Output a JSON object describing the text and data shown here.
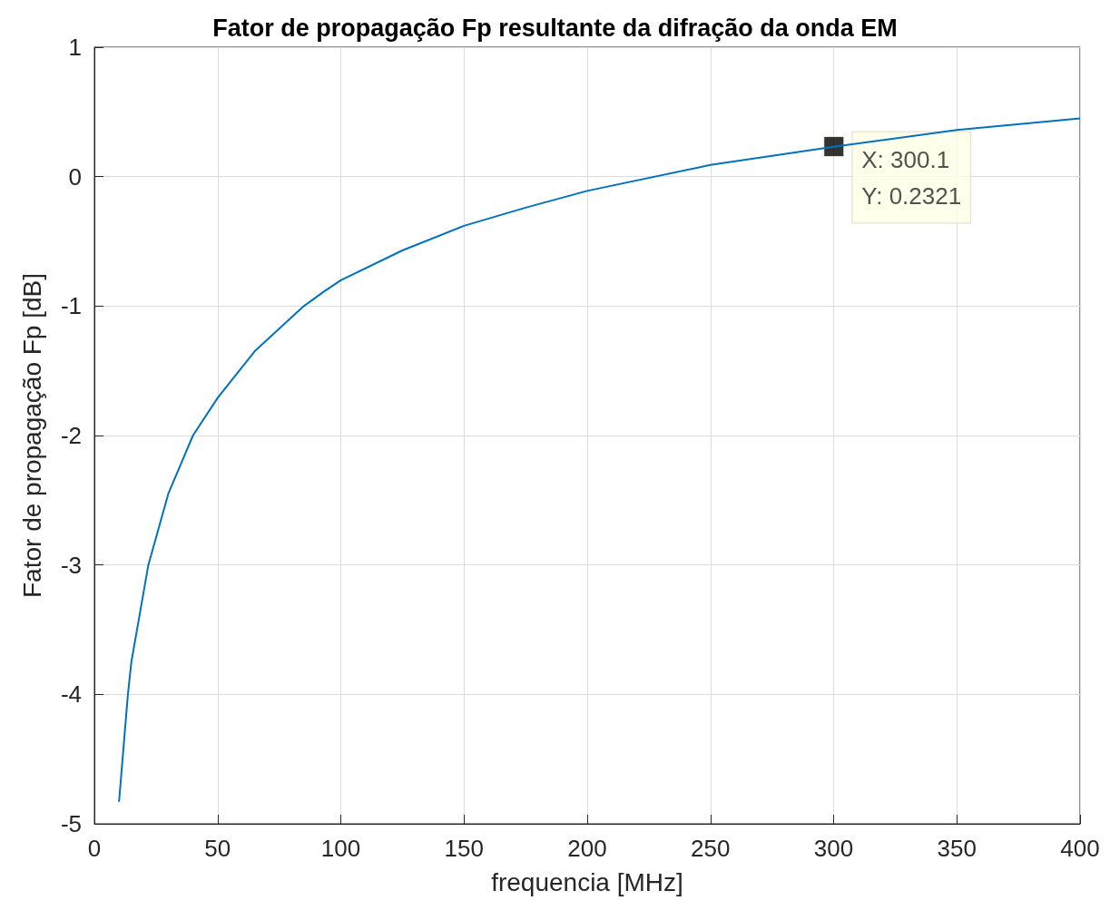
{
  "chart_data": {
    "type": "line",
    "title": "Fator de propagação Fp resultante da difração da onda EM",
    "xlabel": "frequencia [MHz]",
    "ylabel": "Fator de propagação Fp [dB]",
    "x": [
      10,
      13.6,
      15,
      21.9,
      30,
      40,
      50,
      65,
      85,
      93,
      100,
      125,
      150,
      175,
      200,
      250,
      300,
      350,
      400
    ],
    "series": [
      {
        "color": "#0072bd",
        "values": [
          -4.83,
          -4,
          -3.75,
          -3,
          -2.45,
          -2,
          -1.71,
          -1.35,
          -1,
          -0.89,
          -0.8,
          -0.57,
          -0.38,
          -0.24,
          -0.11,
          0.09,
          0.23,
          0.36,
          0.45
        ]
      }
    ],
    "xlim": [
      0,
      400
    ],
    "xticks": [
      0,
      50,
      100,
      150,
      200,
      250,
      300,
      350,
      400
    ],
    "ylim": [
      -5,
      1
    ],
    "yticks": [
      -5,
      -4,
      -3,
      -2,
      -1,
      0,
      1
    ],
    "grid": true,
    "marker": "none",
    "line_style": "solid",
    "annotations": [
      {
        "text": "X: 300.1\nY: 0.2321",
        "x": 300.1,
        "y": 0.2321
      }
    ]
  }
}
